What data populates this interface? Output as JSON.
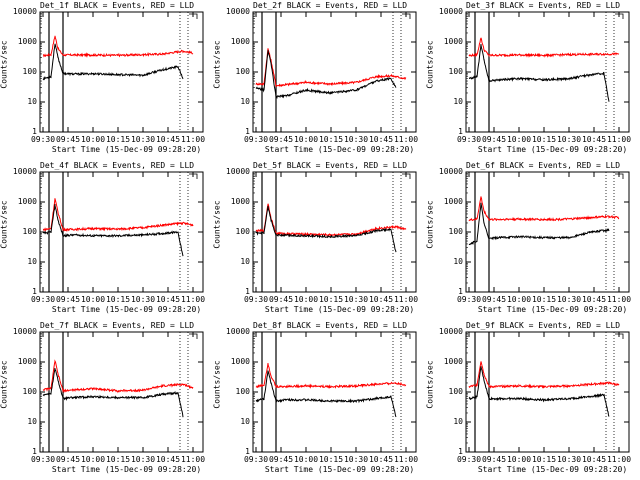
{
  "axes": {
    "xticks": [
      "09:30",
      "09:45",
      "10:00",
      "10:15",
      "10:30",
      "10:45",
      "11:00"
    ],
    "yticks": [
      "1",
      "10",
      "100",
      "1000",
      "10000"
    ],
    "xlabel": "Start Time (15-Dec-09 09:28:20)",
    "ylabel": "Counts/sec"
  },
  "colors": {
    "events": "#000000",
    "lld": "#ff0000"
  },
  "chart_data": [
    {
      "type": "line",
      "title": "Det_1f BLACK = Events, RED = LLD",
      "xlim": [
        9.47,
        11.1
      ],
      "ylim": [
        1,
        10000
      ],
      "yscale": "log",
      "grid": false,
      "legend": "top-right",
      "events": [
        [
          9.5,
          60
        ],
        [
          9.58,
          70
        ],
        [
          9.62,
          900
        ],
        [
          9.65,
          300
        ],
        [
          9.7,
          90
        ],
        [
          9.8,
          85
        ],
        [
          10.0,
          88
        ],
        [
          10.25,
          82
        ],
        [
          10.5,
          78
        ],
        [
          10.7,
          120
        ],
        [
          10.85,
          150
        ],
        [
          10.9,
          60
        ]
      ],
      "lld": [
        [
          9.5,
          350
        ],
        [
          9.58,
          380
        ],
        [
          9.62,
          1600
        ],
        [
          9.65,
          600
        ],
        [
          9.7,
          370
        ],
        [
          10.0,
          370
        ],
        [
          10.25,
          360
        ],
        [
          10.5,
          380
        ],
        [
          10.7,
          400
        ],
        [
          10.9,
          500
        ],
        [
          11.0,
          430
        ]
      ]
    },
    {
      "type": "line",
      "title": "Det_2f BLACK = Events, RED = LLD",
      "xlim": [
        9.47,
        11.1
      ],
      "ylim": [
        1,
        10000
      ],
      "yscale": "log",
      "grid": false,
      "legend": "top-right",
      "events": [
        [
          9.5,
          30
        ],
        [
          9.58,
          25
        ],
        [
          9.62,
          500
        ],
        [
          9.65,
          200
        ],
        [
          9.7,
          15
        ],
        [
          9.8,
          16
        ],
        [
          10.0,
          25
        ],
        [
          10.25,
          20
        ],
        [
          10.5,
          25
        ],
        [
          10.7,
          50
        ],
        [
          10.85,
          60
        ],
        [
          10.9,
          30
        ]
      ],
      "lld": [
        [
          9.5,
          40
        ],
        [
          9.58,
          40
        ],
        [
          9.62,
          600
        ],
        [
          9.65,
          250
        ],
        [
          9.7,
          35
        ],
        [
          9.8,
          38
        ],
        [
          10.0,
          45
        ],
        [
          10.25,
          40
        ],
        [
          10.5,
          45
        ],
        [
          10.7,
          70
        ],
        [
          10.85,
          75
        ],
        [
          11.0,
          60
        ]
      ]
    },
    {
      "type": "line",
      "title": "Det_3f BLACK = Events, RED = LLD",
      "xlim": [
        9.47,
        11.1
      ],
      "ylim": [
        1,
        10000
      ],
      "yscale": "log",
      "grid": false,
      "legend": "top-right",
      "events": [
        [
          9.5,
          60
        ],
        [
          9.58,
          70
        ],
        [
          9.62,
          800
        ],
        [
          9.65,
          250
        ],
        [
          9.7,
          50
        ],
        [
          9.8,
          55
        ],
        [
          10.0,
          60
        ],
        [
          10.25,
          55
        ],
        [
          10.5,
          60
        ],
        [
          10.7,
          80
        ],
        [
          10.85,
          90
        ],
        [
          10.9,
          10
        ]
      ],
      "lld": [
        [
          9.5,
          350
        ],
        [
          9.58,
          380
        ],
        [
          9.62,
          1400
        ],
        [
          9.65,
          550
        ],
        [
          9.7,
          360
        ],
        [
          10.0,
          370
        ],
        [
          10.25,
          360
        ],
        [
          10.5,
          380
        ],
        [
          10.7,
          390
        ],
        [
          11.0,
          400
        ]
      ]
    },
    {
      "type": "line",
      "title": "Det_4f BLACK = Events, RED = LLD",
      "xlim": [
        9.47,
        11.1
      ],
      "ylim": [
        1,
        10000
      ],
      "yscale": "log",
      "grid": false,
      "legend": "top-right",
      "events": [
        [
          9.5,
          90
        ],
        [
          9.58,
          100
        ],
        [
          9.62,
          800
        ],
        [
          9.65,
          250
        ],
        [
          9.7,
          75
        ],
        [
          9.8,
          80
        ],
        [
          10.0,
          75
        ],
        [
          10.25,
          75
        ],
        [
          10.5,
          80
        ],
        [
          10.7,
          90
        ],
        [
          10.85,
          100
        ],
        [
          10.9,
          15
        ]
      ],
      "lld": [
        [
          9.5,
          120
        ],
        [
          9.58,
          130
        ],
        [
          9.62,
          1300
        ],
        [
          9.65,
          450
        ],
        [
          9.7,
          120
        ],
        [
          10.0,
          130
        ],
        [
          10.25,
          125
        ],
        [
          10.5,
          140
        ],
        [
          10.7,
          170
        ],
        [
          10.9,
          200
        ],
        [
          11.0,
          170
        ]
      ]
    },
    {
      "type": "line",
      "title": "Det_5f BLACK = Events, RED = LLD",
      "xlim": [
        9.47,
        11.1
      ],
      "ylim": [
        1,
        10000
      ],
      "yscale": "log",
      "grid": false,
      "legend": "top-right",
      "events": [
        [
          9.5,
          90
        ],
        [
          9.58,
          90
        ],
        [
          9.62,
          700
        ],
        [
          9.65,
          250
        ],
        [
          9.7,
          80
        ],
        [
          9.8,
          78
        ],
        [
          10.0,
          75
        ],
        [
          10.25,
          70
        ],
        [
          10.5,
          75
        ],
        [
          10.7,
          110
        ],
        [
          10.85,
          120
        ],
        [
          10.9,
          20
        ]
      ],
      "lld": [
        [
          9.5,
          110
        ],
        [
          9.58,
          110
        ],
        [
          9.62,
          900
        ],
        [
          9.65,
          300
        ],
        [
          9.7,
          90
        ],
        [
          10.0,
          85
        ],
        [
          10.25,
          80
        ],
        [
          10.5,
          85
        ],
        [
          10.7,
          130
        ],
        [
          10.9,
          150
        ],
        [
          11.0,
          120
        ]
      ]
    },
    {
      "type": "line",
      "title": "Det_6f BLACK = Events, RED = LLD",
      "xlim": [
        9.47,
        11.1
      ],
      "ylim": [
        1,
        10000
      ],
      "yscale": "log",
      "grid": false,
      "legend": "top-right",
      "events": [
        [
          9.5,
          40
        ],
        [
          9.58,
          50
        ],
        [
          9.62,
          900
        ],
        [
          9.65,
          200
        ],
        [
          9.7,
          60
        ],
        [
          9.8,
          65
        ],
        [
          10.0,
          70
        ],
        [
          10.25,
          65
        ],
        [
          10.5,
          65
        ],
        [
          10.7,
          95
        ],
        [
          10.85,
          115
        ],
        [
          10.9,
          115
        ]
      ],
      "lld": [
        [
          9.5,
          250
        ],
        [
          9.58,
          270
        ],
        [
          9.62,
          1500
        ],
        [
          9.65,
          500
        ],
        [
          9.7,
          260
        ],
        [
          10.0,
          270
        ],
        [
          10.25,
          260
        ],
        [
          10.5,
          270
        ],
        [
          10.7,
          300
        ],
        [
          10.9,
          330
        ],
        [
          11.0,
          300
        ]
      ]
    },
    {
      "type": "line",
      "title": "Det_7f BLACK = Events, RED = LLD",
      "xlim": [
        9.47,
        11.1
      ],
      "ylim": [
        1,
        10000
      ],
      "yscale": "log",
      "grid": false,
      "legend": "top-right",
      "events": [
        [
          9.5,
          80
        ],
        [
          9.58,
          90
        ],
        [
          9.62,
          600
        ],
        [
          9.65,
          250
        ],
        [
          9.7,
          60
        ],
        [
          9.8,
          65
        ],
        [
          10.0,
          70
        ],
        [
          10.25,
          65
        ],
        [
          10.5,
          65
        ],
        [
          10.7,
          85
        ],
        [
          10.85,
          95
        ],
        [
          10.9,
          15
        ]
      ],
      "lld": [
        [
          9.5,
          120
        ],
        [
          9.58,
          130
        ],
        [
          9.62,
          1100
        ],
        [
          9.65,
          400
        ],
        [
          9.7,
          110
        ],
        [
          10.0,
          130
        ],
        [
          10.25,
          110
        ],
        [
          10.5,
          115
        ],
        [
          10.7,
          160
        ],
        [
          10.9,
          180
        ],
        [
          11.0,
          140
        ]
      ]
    },
    {
      "type": "line",
      "title": "Det_8f BLACK = Events, RED = LLD",
      "xlim": [
        9.47,
        11.1
      ],
      "ylim": [
        1,
        10000
      ],
      "yscale": "log",
      "grid": false,
      "legend": "top-right",
      "events": [
        [
          9.5,
          50
        ],
        [
          9.58,
          60
        ],
        [
          9.62,
          500
        ],
        [
          9.65,
          200
        ],
        [
          9.7,
          50
        ],
        [
          9.8,
          55
        ],
        [
          10.0,
          55
        ],
        [
          10.25,
          50
        ],
        [
          10.5,
          50
        ],
        [
          10.7,
          60
        ],
        [
          10.85,
          70
        ],
        [
          10.9,
          15
        ]
      ],
      "lld": [
        [
          9.5,
          150
        ],
        [
          9.58,
          170
        ],
        [
          9.62,
          900
        ],
        [
          9.65,
          350
        ],
        [
          9.7,
          150
        ],
        [
          10.0,
          160
        ],
        [
          10.25,
          150
        ],
        [
          10.5,
          160
        ],
        [
          10.7,
          180
        ],
        [
          10.9,
          200
        ],
        [
          11.0,
          170
        ]
      ]
    },
    {
      "type": "line",
      "title": "Det_9f BLACK = Events, RED = LLD",
      "xlim": [
        9.47,
        11.1
      ],
      "ylim": [
        1,
        10000
      ],
      "yscale": "log",
      "grid": false,
      "legend": "top-right",
      "events": [
        [
          9.5,
          60
        ],
        [
          9.58,
          70
        ],
        [
          9.62,
          700
        ],
        [
          9.65,
          250
        ],
        [
          9.7,
          60
        ],
        [
          9.8,
          60
        ],
        [
          10.0,
          60
        ],
        [
          10.25,
          55
        ],
        [
          10.5,
          60
        ],
        [
          10.7,
          70
        ],
        [
          10.85,
          80
        ],
        [
          10.9,
          15
        ]
      ],
      "lld": [
        [
          9.5,
          150
        ],
        [
          9.58,
          170
        ],
        [
          9.62,
          1100
        ],
        [
          9.65,
          400
        ],
        [
          9.7,
          150
        ],
        [
          10.0,
          160
        ],
        [
          10.25,
          150
        ],
        [
          10.5,
          160
        ],
        [
          10.7,
          180
        ],
        [
          10.9,
          200
        ],
        [
          11.0,
          170
        ]
      ]
    }
  ]
}
